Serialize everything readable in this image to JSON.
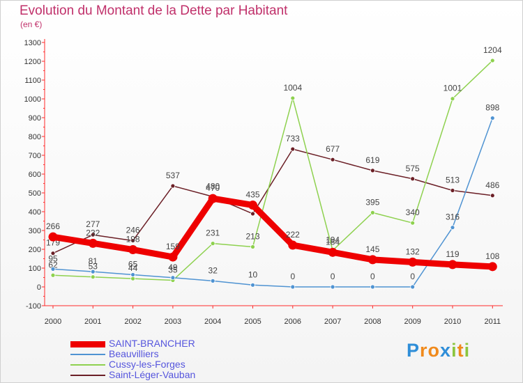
{
  "title": "Evolution du Montant de la Dette par Habitant",
  "subtitle": "(en €)",
  "logo": {
    "letters": [
      {
        "ch": "P",
        "color": "#2f8ed8"
      },
      {
        "ch": "r",
        "color": "#f08a1c"
      },
      {
        "ch": "o",
        "color": "#f08a1c"
      },
      {
        "ch": "x",
        "color": "#2f8ed8"
      },
      {
        "ch": "i",
        "color": "#8cc63f"
      },
      {
        "ch": "t",
        "color": "#f08a1c"
      },
      {
        "ch": "i",
        "color": "#8cc63f"
      }
    ]
  },
  "chart_data": {
    "type": "line",
    "x": [
      "2000",
      "2001",
      "2002",
      "2003",
      "2004",
      "2005",
      "2006",
      "2007",
      "2008",
      "2009",
      "2010",
      "2011"
    ],
    "ylim": [
      -100,
      1300
    ],
    "yticks": [
      -100,
      0,
      100,
      200,
      300,
      400,
      500,
      600,
      700,
      800,
      900,
      1000,
      1100,
      1200,
      1300
    ],
    "grid": false,
    "legend_position": "bottom-left",
    "series": [
      {
        "name": "Saint-Léger-Vauban",
        "color": "#6b1f26",
        "width": 1.5,
        "values": [
          179,
          277,
          246,
          537,
          480,
          389,
          733,
          677,
          619,
          575,
          513,
          486
        ],
        "labels": [
          "179",
          "277",
          "246",
          "537",
          "480",
          "",
          "733",
          "677",
          "619",
          "575",
          "513",
          "486"
        ]
      },
      {
        "name": "Cussy-les-Forges",
        "color": "#8ed14f",
        "width": 1.5,
        "values": [
          62,
          53,
          44,
          35,
          231,
          213,
          1004,
          194,
          395,
          340,
          1001,
          1204
        ],
        "labels": [
          "62",
          "53",
          "44",
          "35",
          "231",
          "213",
          "1004",
          "194",
          "395",
          "340",
          "1001",
          "1204"
        ]
      },
      {
        "name": "Beauvilliers",
        "color": "#4f93d2",
        "width": 1.5,
        "values": [
          95,
          81,
          65,
          49,
          32,
          10,
          0,
          0,
          0,
          0,
          316,
          898
        ],
        "labels": [
          "95",
          "81",
          "65",
          "49",
          "32",
          "10",
          "0",
          "0",
          "0",
          "0",
          "316",
          "898"
        ]
      },
      {
        "name": "SAINT-BRANCHER",
        "color": "#ee0000",
        "width": 9,
        "values": [
          266,
          232,
          198,
          159,
          470,
          435,
          222,
          184,
          145,
          132,
          119,
          108
        ],
        "labels": [
          "266",
          "232",
          "198",
          "159",
          "470",
          "435",
          "222",
          "184",
          "145",
          "132",
          "119",
          "108"
        ]
      }
    ]
  }
}
